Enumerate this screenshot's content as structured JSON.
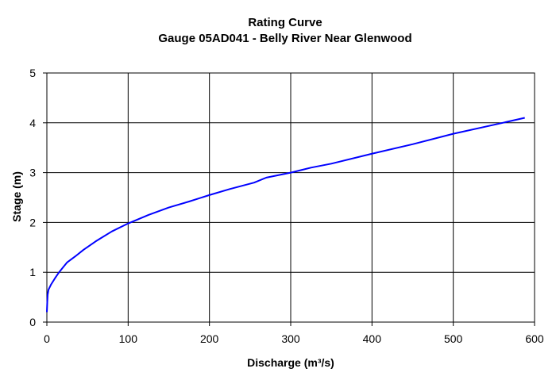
{
  "chart_data": {
    "type": "line",
    "title": "Rating Curve",
    "subtitle": "Gauge 05AD041 - Belly River Near Glenwood",
    "xlabel": "Discharge (m³/s)",
    "ylabel": "Stage (m)",
    "xlim": [
      0,
      600
    ],
    "ylim": [
      0,
      5
    ],
    "xticks": [
      0,
      100,
      200,
      300,
      400,
      500,
      600
    ],
    "yticks": [
      0,
      1,
      2,
      3,
      4,
      5
    ],
    "grid": true,
    "legend": "none",
    "series": [
      {
        "color": "#0000ff",
        "points": [
          [
            0,
            0.2
          ],
          [
            0.5,
            0.4
          ],
          [
            1,
            0.55
          ],
          [
            2,
            0.65
          ],
          [
            5,
            0.75
          ],
          [
            10,
            0.88
          ],
          [
            15,
            1.0
          ],
          [
            20,
            1.1
          ],
          [
            25,
            1.2
          ],
          [
            35,
            1.32
          ],
          [
            45,
            1.45
          ],
          [
            60,
            1.62
          ],
          [
            80,
            1.82
          ],
          [
            100,
            1.98
          ],
          [
            125,
            2.15
          ],
          [
            150,
            2.3
          ],
          [
            175,
            2.42
          ],
          [
            200,
            2.55
          ],
          [
            225,
            2.67
          ],
          [
            255,
            2.8
          ],
          [
            270,
            2.9
          ],
          [
            300,
            3.0
          ],
          [
            325,
            3.1
          ],
          [
            350,
            3.18
          ],
          [
            400,
            3.38
          ],
          [
            450,
            3.57
          ],
          [
            500,
            3.78
          ],
          [
            550,
            3.96
          ],
          [
            588,
            4.1
          ]
        ]
      }
    ]
  }
}
